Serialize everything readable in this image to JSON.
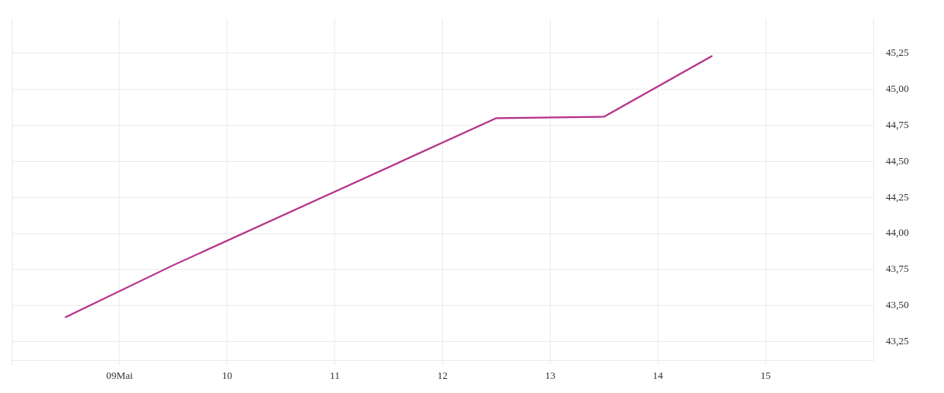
{
  "chart_data": {
    "type": "line",
    "series": [
      {
        "color": "#b5338a",
        "x": [
          8.5,
          9.5,
          12.5,
          13.5,
          14.5
        ],
        "values": [
          43.42,
          43.78,
          44.8,
          44.81,
          45.23
        ]
      }
    ],
    "xlim": [
      8,
      16
    ],
    "xticks": [
      {
        "value": 9,
        "label": "09Mai"
      },
      {
        "value": 10,
        "label": "10"
      },
      {
        "value": 11,
        "label": "11"
      },
      {
        "value": 12,
        "label": "12"
      },
      {
        "value": 13,
        "label": "13"
      },
      {
        "value": 14,
        "label": "14"
      },
      {
        "value": 15,
        "label": "15"
      }
    ],
    "ylim": [
      43.12,
      45.49
    ],
    "yticks": [
      {
        "value": 43.25,
        "label": "43,25"
      },
      {
        "value": 43.5,
        "label": "43,50"
      },
      {
        "value": 43.75,
        "label": "43,75"
      },
      {
        "value": 44,
        "label": "44,00"
      },
      {
        "value": 44.25,
        "label": "44,25"
      },
      {
        "value": 44.5,
        "label": "44,50"
      },
      {
        "value": 44.75,
        "label": "44,75"
      },
      {
        "value": 45,
        "label": "45,00"
      },
      {
        "value": 45.25,
        "label": "45,25"
      }
    ],
    "grid": true,
    "legend": false,
    "marker": "none",
    "line_style": "solid"
  }
}
